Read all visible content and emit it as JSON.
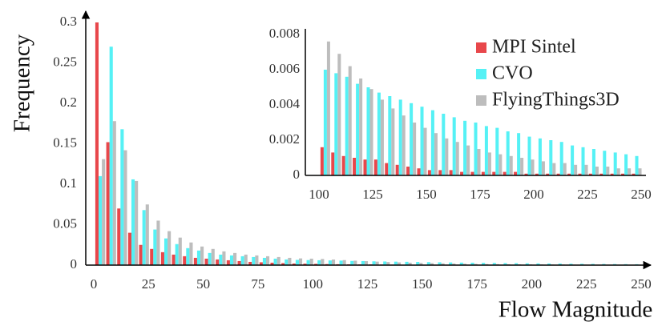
{
  "chart_data": [
    {
      "type": "bar",
      "xlabel": "Flow Magnitude",
      "ylabel": "Frequency",
      "legend": "upper right",
      "x": [
        0,
        5,
        10,
        15,
        20,
        25,
        30,
        35,
        40,
        45,
        50,
        55,
        60,
        65,
        70,
        75,
        80,
        85,
        90,
        95,
        100,
        105,
        110,
        115,
        120,
        125,
        130,
        135,
        140,
        145,
        150,
        155,
        160,
        165,
        170,
        175,
        180,
        185,
        190,
        195,
        200,
        205,
        210,
        215,
        220,
        225,
        230,
        235,
        240,
        245
      ],
      "xlim": [
        0,
        250
      ],
      "ylim": [
        0,
        0.3
      ],
      "xticks": [
        0,
        25,
        50,
        75,
        100,
        125,
        150,
        175,
        200,
        225,
        250
      ],
      "yticks": [
        0,
        0.05,
        0.1,
        0.15,
        0.2,
        0.25,
        0.3
      ],
      "series": [
        {
          "name": "MPI Sintel",
          "color": "#e8474b",
          "values": [
            0.3,
            0.152,
            0.07,
            0.04,
            0.025,
            0.02,
            0.016,
            0.013,
            0.011,
            0.009,
            0.008,
            0.007,
            0.006,
            0.005,
            0.004,
            0.0035,
            0.003,
            0.0025,
            0.002,
            0.0018,
            0.0016,
            0.0013,
            0.0011,
            0.001,
            0.0009,
            0.0009,
            0.0007,
            0.0006,
            0.0005,
            0.0004,
            0.0003,
            0.0003,
            0.0003,
            0.0002,
            0.0002,
            0.0002,
            0.0002,
            0.0002,
            0.0002,
            0.0001,
            0.0001,
            0.0001,
            0.0001,
            0.0001,
            0.0001,
            0.0001,
            0.0001,
            0.0001,
            0.0001,
            0.0001
          ]
        },
        {
          "name": "CVO",
          "color": "#55f1f5",
          "values": [
            0.11,
            0.27,
            0.168,
            0.106,
            0.068,
            0.044,
            0.033,
            0.026,
            0.021,
            0.018,
            0.015,
            0.013,
            0.012,
            0.011,
            0.01,
            0.009,
            0.008,
            0.007,
            0.0065,
            0.0062,
            0.006,
            0.0058,
            0.0056,
            0.0052,
            0.005,
            0.0047,
            0.0045,
            0.0043,
            0.0041,
            0.0039,
            0.0037,
            0.0035,
            0.0033,
            0.0031,
            0.003,
            0.0028,
            0.0027,
            0.0025,
            0.0024,
            0.0022,
            0.0021,
            0.002,
            0.0019,
            0.0017,
            0.0016,
            0.0015,
            0.0014,
            0.0013,
            0.0012,
            0.0011
          ]
        },
        {
          "name": "FlyingThings3D",
          "color": "#bdbdbd",
          "values": [
            0.131,
            0.178,
            0.142,
            0.104,
            0.075,
            0.055,
            0.042,
            0.034,
            0.028,
            0.023,
            0.02,
            0.017,
            0.015,
            0.013,
            0.012,
            0.011,
            0.01,
            0.009,
            0.0083,
            0.008,
            0.0076,
            0.0069,
            0.0062,
            0.0055,
            0.0049,
            0.0043,
            0.0038,
            0.0034,
            0.003,
            0.0027,
            0.0024,
            0.0021,
            0.0019,
            0.0017,
            0.0015,
            0.0013,
            0.0012,
            0.0011,
            0.001,
            0.0009,
            0.0008,
            0.0007,
            0.0007,
            0.0006,
            0.0006,
            0.0005,
            0.0005,
            0.0004,
            0.0004,
            0.0004
          ]
        }
      ]
    },
    {
      "type": "bar",
      "x": [
        100,
        105,
        110,
        115,
        120,
        125,
        130,
        135,
        140,
        145,
        150,
        155,
        160,
        165,
        170,
        175,
        180,
        185,
        190,
        195,
        200,
        205,
        210,
        215,
        220,
        225,
        230,
        235,
        240,
        245
      ],
      "xlim": [
        100,
        250
      ],
      "ylim": [
        0,
        0.008
      ],
      "xticks": [
        100,
        125,
        150,
        175,
        200,
        225,
        250
      ],
      "yticks": [
        0,
        0.002,
        0.004,
        0.006,
        0.008
      ],
      "series": [
        {
          "color": "#e8474b",
          "values": [
            0.0016,
            0.0013,
            0.0011,
            0.001,
            0.0009,
            0.0009,
            0.0007,
            0.0006,
            0.0005,
            0.0004,
            0.0003,
            0.0003,
            0.0003,
            0.0002,
            0.0002,
            0.0002,
            0.0002,
            0.0002,
            0.0002,
            0.0001,
            0.0001,
            0.0001,
            0.0001,
            0.0001,
            0.0001,
            0.0001,
            0.0001,
            0.0001,
            0.0001,
            0.0001
          ]
        },
        {
          "color": "#55f1f5",
          "values": [
            0.006,
            0.0058,
            0.0056,
            0.0052,
            0.005,
            0.0047,
            0.0045,
            0.0043,
            0.0041,
            0.0039,
            0.0037,
            0.0035,
            0.0033,
            0.0031,
            0.003,
            0.0028,
            0.0027,
            0.0025,
            0.0024,
            0.0022,
            0.0021,
            0.002,
            0.0019,
            0.0017,
            0.0016,
            0.0015,
            0.0014,
            0.0013,
            0.0012,
            0.0011
          ]
        },
        {
          "color": "#bdbdbd",
          "values": [
            0.0076,
            0.0069,
            0.0062,
            0.0055,
            0.0049,
            0.0043,
            0.0038,
            0.0034,
            0.003,
            0.0027,
            0.0024,
            0.0021,
            0.0019,
            0.0017,
            0.0015,
            0.0013,
            0.0012,
            0.0011,
            0.001,
            0.0009,
            0.0008,
            0.0007,
            0.0007,
            0.0006,
            0.0006,
            0.0005,
            0.0005,
            0.0004,
            0.0004,
            0.0004
          ]
        }
      ]
    }
  ]
}
